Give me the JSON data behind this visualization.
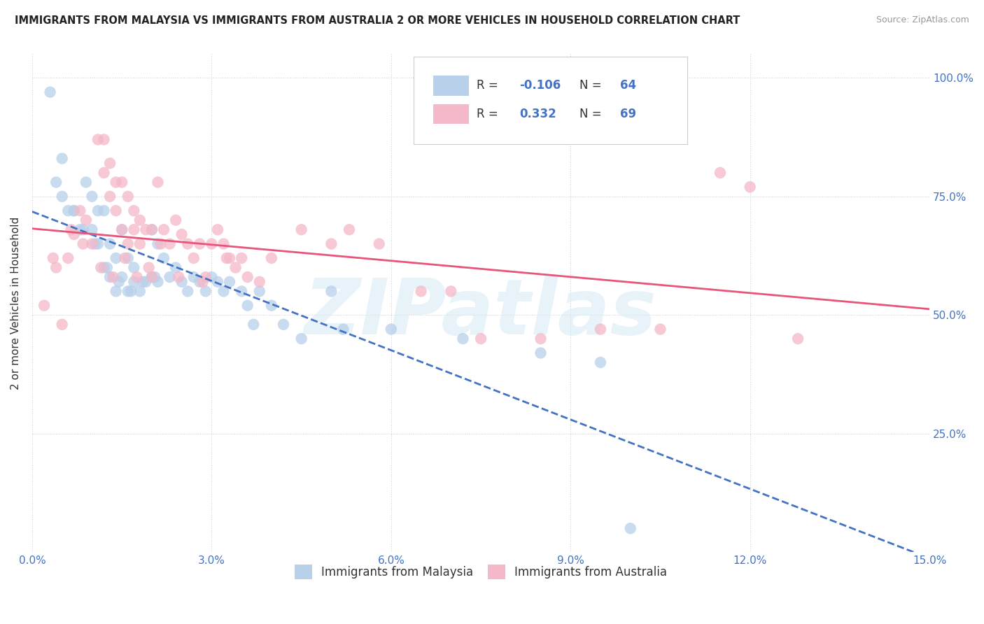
{
  "title": "IMMIGRANTS FROM MALAYSIA VS IMMIGRANTS FROM AUSTRALIA 2 OR MORE VEHICLES IN HOUSEHOLD CORRELATION CHART",
  "source": "Source: ZipAtlas.com",
  "ylabel": "2 or more Vehicles in Household",
  "watermark_text": "ZIPatlas",
  "legend_malaysia": {
    "R": "-0.106",
    "N": "64",
    "color": "#b8d0ea"
  },
  "legend_australia": {
    "R": "0.332",
    "N": "69",
    "color": "#f4b8c8"
  },
  "malaysia_scatter_color": "#b8d0ea",
  "australia_scatter_color": "#f4b8c8",
  "malaysia_line_color": "#4472c4",
  "australia_line_color": "#e8557a",
  "xlim": [
    0.0,
    15.0
  ],
  "ylim": [
    0.0,
    105.0
  ],
  "xtick_vals": [
    0,
    3,
    6,
    9,
    12,
    15
  ],
  "xtick_labels": [
    "0.0%",
    "3.0%",
    "6.0%",
    "9.0%",
    "12.0%",
    "15.0%"
  ],
  "ytick_vals": [
    0,
    25,
    50,
    75,
    100
  ],
  "ytick_labels": [
    "",
    "25.0%",
    "50.0%",
    "75.0%",
    "100.0%"
  ],
  "malaysia_x": [
    0.3,
    0.5,
    0.6,
    0.7,
    0.8,
    0.9,
    1.0,
    1.0,
    1.1,
    1.1,
    1.2,
    1.2,
    1.3,
    1.3,
    1.4,
    1.4,
    1.5,
    1.5,
    1.6,
    1.6,
    1.7,
    1.7,
    1.8,
    1.9,
    2.0,
    2.0,
    2.1,
    2.1,
    2.2,
    2.3,
    2.4,
    2.5,
    2.6,
    2.7,
    2.8,
    2.9,
    3.0,
    3.1,
    3.2,
    3.3,
    3.5,
    3.6,
    3.7,
    3.8,
    4.0,
    4.2,
    4.5,
    5.0,
    5.2,
    6.0,
    7.2,
    8.5,
    9.5,
    10.0,
    0.4,
    0.5,
    0.7,
    0.85,
    1.05,
    1.25,
    1.45,
    1.65,
    1.85,
    2.05
  ],
  "malaysia_y": [
    97,
    83,
    72,
    72,
    68,
    78,
    75,
    68,
    72,
    65,
    72,
    60,
    65,
    58,
    62,
    55,
    68,
    58,
    62,
    55,
    60,
    57,
    55,
    57,
    68,
    58,
    65,
    57,
    62,
    58,
    60,
    57,
    55,
    58,
    57,
    55,
    58,
    57,
    55,
    57,
    55,
    52,
    48,
    55,
    52,
    48,
    45,
    55,
    47,
    47,
    45,
    42,
    40,
    5,
    78,
    75,
    72,
    68,
    65,
    60,
    57,
    55,
    57,
    58
  ],
  "australia_x": [
    0.2,
    0.4,
    0.5,
    0.6,
    0.7,
    0.8,
    0.9,
    1.0,
    1.1,
    1.2,
    1.2,
    1.3,
    1.3,
    1.4,
    1.4,
    1.5,
    1.5,
    1.6,
    1.6,
    1.7,
    1.7,
    1.8,
    1.8,
    1.9,
    2.0,
    2.0,
    2.1,
    2.2,
    2.3,
    2.4,
    2.5,
    2.6,
    2.7,
    2.8,
    2.9,
    3.0,
    3.1,
    3.2,
    3.3,
    3.4,
    3.5,
    3.6,
    3.8,
    4.0,
    4.5,
    5.0,
    5.3,
    5.8,
    6.5,
    7.0,
    7.5,
    8.5,
    9.5,
    10.5,
    11.5,
    12.0,
    12.8,
    0.35,
    0.65,
    0.85,
    1.15,
    1.35,
    1.55,
    1.75,
    1.95,
    2.15,
    2.45,
    2.85,
    3.25
  ],
  "australia_y": [
    52,
    60,
    48,
    62,
    67,
    72,
    70,
    65,
    87,
    87,
    80,
    82,
    75,
    78,
    72,
    78,
    68,
    75,
    65,
    72,
    68,
    70,
    65,
    68,
    68,
    58,
    78,
    68,
    65,
    70,
    67,
    65,
    62,
    65,
    58,
    65,
    68,
    65,
    62,
    60,
    62,
    58,
    57,
    62,
    68,
    65,
    68,
    65,
    55,
    55,
    45,
    45,
    47,
    47,
    80,
    77,
    45,
    62,
    68,
    65,
    60,
    58,
    62,
    58,
    60,
    65,
    58,
    57,
    62
  ]
}
